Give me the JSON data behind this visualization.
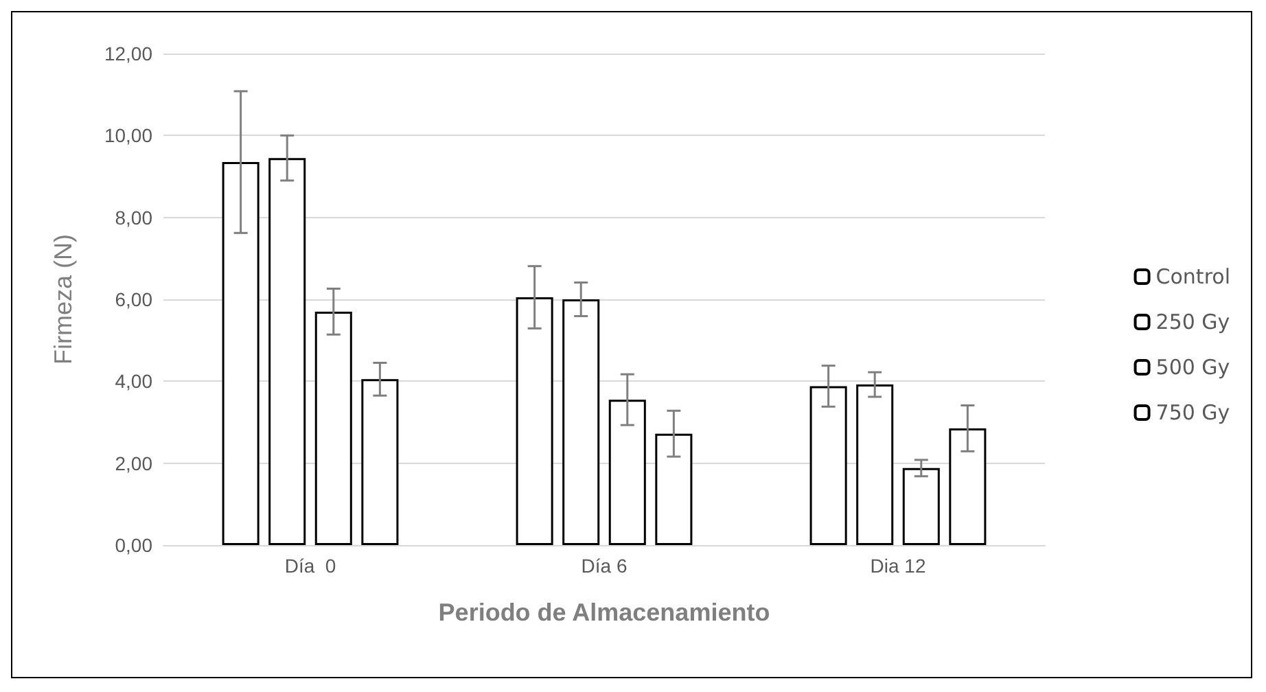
{
  "chart_data": {
    "type": "bar",
    "xlabel": "Periodo de Almacenamiento",
    "ylabel": "Firmeza (N)",
    "categories": [
      "Día  0",
      "Día 6",
      "Dia 12"
    ],
    "series": [
      {
        "name": "Control",
        "color": "#ffffff",
        "values": [
          9.35,
          6.05,
          3.88
        ],
        "errors": [
          1.73,
          0.76,
          0.5
        ]
      },
      {
        "name": "250 Gy",
        "color": "#ffffff",
        "values": [
          9.45,
          6.0,
          3.92
        ],
        "errors": [
          0.55,
          0.41,
          0.3
        ]
      },
      {
        "name": "500 Gy",
        "color": "#ffffff",
        "values": [
          5.7,
          3.55,
          1.88
        ],
        "errors": [
          0.56,
          0.62,
          0.2
        ]
      },
      {
        "name": "750 Gy",
        "color": "#ffffff",
        "values": [
          4.05,
          2.72,
          2.85
        ],
        "errors": [
          0.4,
          0.56,
          0.56
        ]
      }
    ],
    "ylim": [
      0,
      12
    ],
    "yticks": [
      {
        "value": 0,
        "label": "0,00"
      },
      {
        "value": 2,
        "label": "2,00"
      },
      {
        "value": 4,
        "label": "4,00"
      },
      {
        "value": 6,
        "label": "6,00"
      },
      {
        "value": 8,
        "label": "8,00"
      },
      {
        "value": 10,
        "label": "10,00"
      },
      {
        "value": 12,
        "label": "12,00"
      }
    ],
    "grid": "y",
    "legend": "right"
  }
}
